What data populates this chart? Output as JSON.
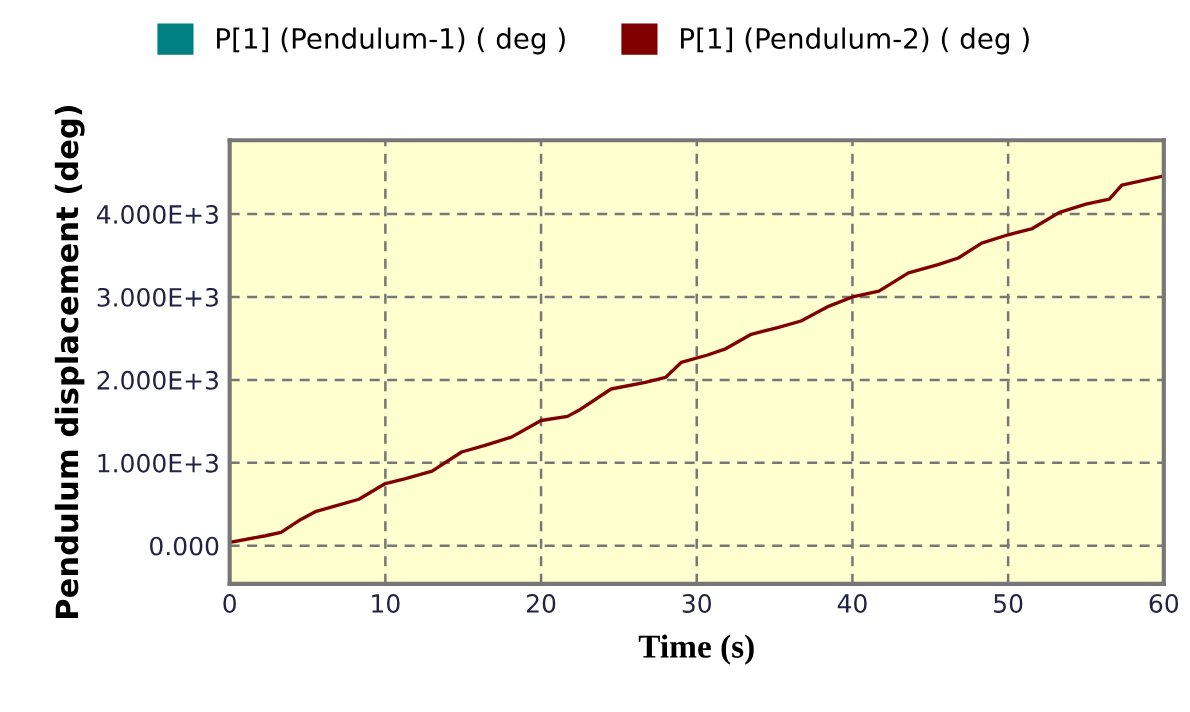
{
  "chart_data": {
    "type": "line",
    "xlabel": "Time (s)",
    "ylabel": "Pendulum displacement (deg)",
    "legend": "top",
    "grid": true,
    "xlim": [
      0,
      60
    ],
    "xticks": [
      0,
      10,
      20,
      30,
      40,
      50,
      60
    ],
    "ylim": [
      -460,
      4890
    ],
    "yticks": [
      {
        "value": 0,
        "label": "0.000"
      },
      {
        "value": 1000,
        "label": "1.000E+3"
      },
      {
        "value": 2000,
        "label": "2.000E+3"
      },
      {
        "value": 3000,
        "label": "3.000E+3"
      },
      {
        "value": 4000,
        "label": "4.000E+3"
      }
    ],
    "x": [
      0,
      2.3,
      3.3,
      4.6,
      5.5,
      6.8,
      8.3,
      10,
      11.3,
      13,
      14.9,
      16.4,
      18.1,
      20,
      21.7,
      22.4,
      24.5,
      26.7,
      28,
      29,
      30.7,
      31.8,
      33.5,
      35.2,
      36.7,
      38.5,
      40,
      41.7,
      43.6,
      45.5,
      46.8,
      48.3,
      50,
      51.5,
      53.3,
      55,
      56.5,
      57.3,
      60
    ],
    "series": [
      {
        "name": "P[1] (Pendulum-1) ( deg )",
        "color": "#008080",
        "values": [
          null,
          null,
          null,
          null,
          null,
          null,
          null,
          null,
          null,
          null,
          null,
          null,
          null,
          null,
          null,
          null,
          null,
          null,
          null,
          null,
          null,
          null,
          null,
          null,
          null,
          null,
          null,
          null,
          null,
          null,
          null,
          null,
          null,
          null,
          null,
          null,
          null,
          null,
          null
        ]
      },
      {
        "name": "P[1] (Pendulum-2) ( deg )",
        "color": "#800000",
        "values": [
          40,
          120,
          160,
          320,
          410,
          480,
          560,
          750,
          810,
          900,
          1130,
          1210,
          1310,
          1510,
          1560,
          1630,
          1890,
          1970,
          2030,
          2210,
          2300,
          2370,
          2550,
          2630,
          2710,
          2890,
          3000,
          3070,
          3290,
          3390,
          3470,
          3650,
          3750,
          3820,
          4020,
          4120,
          4180,
          4350,
          4460
        ]
      }
    ]
  }
}
